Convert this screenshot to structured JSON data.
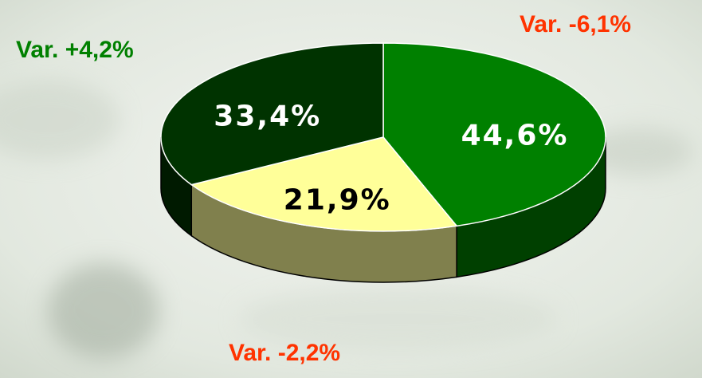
{
  "chart_data": {
    "type": "pie",
    "values": [
      44.6,
      21.9,
      33.4
    ],
    "value_labels": [
      "44,6%",
      "21,9%",
      "33,4%"
    ],
    "colors": [
      "#008000",
      "#ffff99",
      "#003300"
    ],
    "annotations": [
      {
        "text": "Var. -6,1%",
        "color": "#ff3300"
      },
      {
        "text": "Var. -2,2%",
        "color": "#ff3300"
      },
      {
        "text": "Var. +4,2%",
        "color": "#008000"
      }
    ]
  }
}
